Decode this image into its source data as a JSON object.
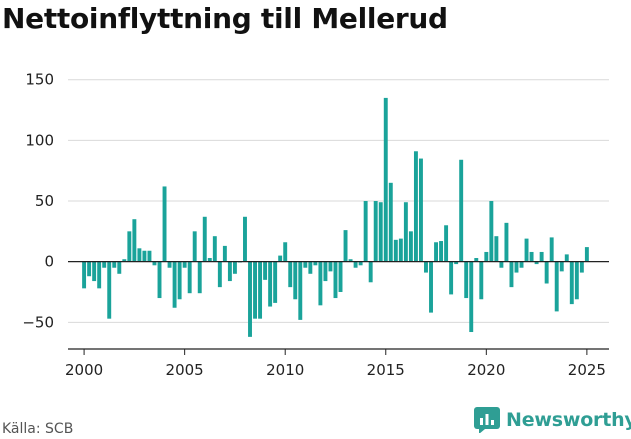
{
  "title": "Nettoinflyttning till Mellerud",
  "source": "Källa: SCB",
  "brand": {
    "name": "Newsworthy",
    "icon": "newsworthy-logo-icon",
    "color": "#2f9e94"
  },
  "chart_data": {
    "type": "bar",
    "title": "Nettoinflyttning till Mellerud",
    "xlabel": "",
    "ylabel": "",
    "frequency": "quarterly",
    "x_start": "2000-Q1",
    "xlim": [
      1999.2,
      2026.1
    ],
    "ylim": [
      -72,
      158
    ],
    "y_ticks": [
      -50,
      0,
      50,
      100,
      150
    ],
    "y_tick_labels": [
      "−50",
      "0",
      "50",
      "100",
      "150"
    ],
    "x_ticks": [
      2000,
      2005,
      2010,
      2015,
      2020,
      2025
    ],
    "x_tick_labels": [
      "2000",
      "2005",
      "2010",
      "2015",
      "2020",
      "2025"
    ],
    "grid": true,
    "bar_color": "#1aa39a",
    "values": [
      -22,
      -12,
      -16,
      -22,
      -5,
      -47,
      -5,
      -10,
      2,
      25,
      35,
      11,
      9,
      9,
      -3,
      -30,
      62,
      -5,
      -38,
      -31,
      -5,
      -26,
      25,
      -26,
      37,
      3,
      21,
      -21,
      13,
      -16,
      -10,
      0,
      37,
      -62,
      -47,
      -47,
      -15,
      -37,
      -34,
      5,
      16,
      -21,
      -31,
      -48,
      -5,
      -10,
      -3,
      -36,
      -16,
      -8,
      -30,
      -25,
      26,
      2,
      -5,
      -3,
      50,
      -17,
      50,
      49,
      135,
      65,
      18,
      19,
      49,
      25,
      91,
      85,
      -9,
      -42,
      16,
      17,
      30,
      -27,
      -2,
      84,
      -30,
      -58,
      3,
      -31,
      8,
      50,
      21,
      -5,
      32,
      -21,
      -9,
      -5,
      19,
      8,
      -2,
      8,
      -18,
      20,
      -41,
      -8,
      6,
      -35,
      -31,
      -9,
      12
    ]
  }
}
